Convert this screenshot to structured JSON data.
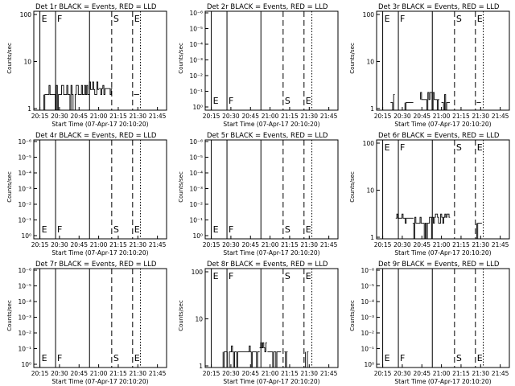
{
  "figure": {
    "background": "#ffffff",
    "foreground": "#000000"
  },
  "chart_data": [
    {
      "type": "line",
      "title": "Det 1r BLACK = Events, RED = LLD",
      "xlabel": "Start Time (07-Apr-17 20:10:20)",
      "ylabel": "Counts/sec",
      "x_ticks": [
        "20:15",
        "20:30",
        "20:45",
        "21:00",
        "21:15",
        "21:30",
        "21:45"
      ],
      "y_scale": "log",
      "y_ticks": [
        "1",
        "10",
        "100"
      ],
      "ylim": [
        1,
        100
      ],
      "markers": [
        {
          "label": "E",
          "time": "20:15",
          "style": "solid"
        },
        {
          "label": "F",
          "time": "20:27",
          "style": "solid"
        },
        {
          "label": "",
          "time": "20:53",
          "style": "solid"
        },
        {
          "label": "S",
          "time": "21:10",
          "style": "dashed"
        },
        {
          "label": "E",
          "time": "21:26",
          "style": "dashed"
        },
        {
          "label": "",
          "time": "21:32",
          "style": "dotted"
        }
      ],
      "series": [
        {
          "color": "#000000",
          "segments": [
            {
              "t_start": "20:18",
              "t_end": "20:53",
              "low": 1,
              "high": 3,
              "baseline": 2
            },
            {
              "t_start": "20:53",
              "t_end": "21:00",
              "low": 2,
              "high": 3.5,
              "baseline": 2.5
            },
            {
              "t_start": "21:00",
              "t_end": "21:10",
              "low": 2,
              "high": 3,
              "baseline": 2.6
            },
            {
              "t_start": "21:27",
              "t_end": "21:31",
              "low": 1,
              "high": 3,
              "baseline": 2
            }
          ]
        }
      ]
    },
    {
      "type": "line",
      "title": "Det 2r BLACK = Events, RED = LLD",
      "xlabel": "Start Time (07-Apr-17 20:10:20)",
      "ylabel": "Counts/sec",
      "x_ticks": [
        "20:15",
        "20:30",
        "20:45",
        "21:00",
        "21:15",
        "21:30",
        "21:45"
      ],
      "y_scale": "log",
      "y_ticks": [
        "10⁰",
        "10⁻¹",
        "10⁻²",
        "10⁻³",
        "10⁻⁴",
        "10⁻⁵",
        "10⁻⁶"
      ],
      "ylim": [
        1,
        1e-06
      ],
      "markers": [
        {
          "label": "E",
          "time": "20:15",
          "style": "solid"
        },
        {
          "label": "F",
          "time": "20:27",
          "style": "solid"
        },
        {
          "label": "",
          "time": "20:53",
          "style": "solid"
        },
        {
          "label": "S",
          "time": "21:10",
          "style": "dashed"
        },
        {
          "label": "E",
          "time": "21:26",
          "style": "dashed"
        },
        {
          "label": "",
          "time": "21:32",
          "style": "dotted"
        }
      ],
      "series": []
    },
    {
      "type": "line",
      "title": "Det 3r BLACK = Events, RED = LLD",
      "xlabel": "Start Time (07-Apr-17 20:10:20)",
      "ylabel": "Counts/sec",
      "x_ticks": [
        "20:15",
        "20:30",
        "20:45",
        "21:00",
        "21:15",
        "21:30",
        "21:45"
      ],
      "y_scale": "log",
      "y_ticks": [
        "1",
        "10",
        "100"
      ],
      "ylim": [
        1,
        100
      ],
      "markers": [
        {
          "label": "E",
          "time": "20:15",
          "style": "solid"
        },
        {
          "label": "F",
          "time": "20:27",
          "style": "solid"
        },
        {
          "label": "",
          "time": "20:53",
          "style": "solid"
        },
        {
          "label": "S",
          "time": "21:10",
          "style": "dashed"
        },
        {
          "label": "E",
          "time": "21:26",
          "style": "dashed"
        },
        {
          "label": "",
          "time": "21:32",
          "style": "dotted"
        }
      ],
      "series": [
        {
          "color": "#000000",
          "segments": [
            {
              "t_start": "20:21",
              "t_end": "20:24",
              "low": 1,
              "high": 2,
              "baseline": 1.4
            },
            {
              "t_start": "20:32",
              "t_end": "20:38",
              "low": 1,
              "high": 2,
              "baseline": 1.4
            },
            {
              "t_start": "20:44",
              "t_end": "20:58",
              "low": 1,
              "high": 2.2,
              "baseline": 1.6
            },
            {
              "t_start": "21:00",
              "t_end": "21:06",
              "low": 1,
              "high": 2,
              "baseline": 1.4
            },
            {
              "t_start": "21:27",
              "t_end": "21:30",
              "low": 1,
              "high": 2,
              "baseline": 1.4
            }
          ]
        }
      ]
    },
    {
      "type": "line",
      "title": "Det 4r BLACK = Events, RED = LLD",
      "xlabel": "Start Time (07-Apr-17 20:10:20)",
      "ylabel": "Counts/sec",
      "x_ticks": [
        "20:15",
        "20:30",
        "20:45",
        "21:00",
        "21:15",
        "21:30",
        "21:45"
      ],
      "y_scale": "log",
      "y_ticks": [
        "10⁰",
        "10⁻¹",
        "10⁻²",
        "10⁻³",
        "10⁻⁴",
        "10⁻⁵",
        "10⁻⁶"
      ],
      "ylim": [
        1,
        1e-06
      ],
      "markers": [
        {
          "label": "E",
          "time": "20:15",
          "style": "solid"
        },
        {
          "label": "F",
          "time": "20:27",
          "style": "solid"
        },
        {
          "label": "",
          "time": "20:53",
          "style": "solid"
        },
        {
          "label": "S",
          "time": "21:10",
          "style": "dashed"
        },
        {
          "label": "E",
          "time": "21:26",
          "style": "dashed"
        },
        {
          "label": "",
          "time": "21:32",
          "style": "dotted"
        }
      ],
      "series": []
    },
    {
      "type": "line",
      "title": "Det 5r BLACK = Events, RED = LLD",
      "xlabel": "Start Time (07-Apr-17 20:10:20)",
      "ylabel": "Counts/sec",
      "x_ticks": [
        "20:15",
        "20:30",
        "20:45",
        "21:00",
        "21:15",
        "21:30",
        "21:45"
      ],
      "y_scale": "log",
      "y_ticks": [
        "10⁰",
        "10⁻¹",
        "10⁻²",
        "10⁻³",
        "10⁻⁴",
        "10⁻⁵",
        "10⁻⁶"
      ],
      "ylim": [
        1,
        1e-06
      ],
      "markers": [
        {
          "label": "E",
          "time": "20:15",
          "style": "solid"
        },
        {
          "label": "F",
          "time": "20:27",
          "style": "solid"
        },
        {
          "label": "",
          "time": "20:53",
          "style": "solid"
        },
        {
          "label": "S",
          "time": "21:10",
          "style": "dashed"
        },
        {
          "label": "E",
          "time": "21:26",
          "style": "dashed"
        },
        {
          "label": "",
          "time": "21:32",
          "style": "dotted"
        }
      ],
      "series": []
    },
    {
      "type": "line",
      "title": "Det 6r BLACK = Events, RED = LLD",
      "xlabel": "Start Time (07-Apr-17 20:10:20)",
      "ylabel": "Counts/sec",
      "x_ticks": [
        "20:15",
        "20:30",
        "20:45",
        "21:00",
        "21:15",
        "21:30",
        "21:45"
      ],
      "y_scale": "log",
      "y_ticks": [
        "1",
        "10",
        "100"
      ],
      "ylim": [
        1,
        100
      ],
      "markers": [
        {
          "label": "E",
          "time": "20:15",
          "style": "solid"
        },
        {
          "label": "F",
          "time": "20:27",
          "style": "solid"
        },
        {
          "label": "",
          "time": "20:53",
          "style": "solid"
        },
        {
          "label": "S",
          "time": "21:10",
          "style": "dashed"
        },
        {
          "label": "E",
          "time": "21:26",
          "style": "dashed"
        },
        {
          "label": "",
          "time": "21:32",
          "style": "dotted"
        }
      ],
      "series": [
        {
          "color": "#000000",
          "segments": [
            {
              "t_start": "20:25",
              "t_end": "20:38",
              "low": 2,
              "high": 3,
              "baseline": 2.5
            },
            {
              "t_start": "20:38",
              "t_end": "20:53",
              "low": 1,
              "high": 2.6,
              "baseline": 2
            },
            {
              "t_start": "20:53",
              "t_end": "21:06",
              "low": 2,
              "high": 3,
              "baseline": 2.6
            },
            {
              "t_start": "21:27",
              "t_end": "21:31",
              "low": 1,
              "high": 3,
              "baseline": 2
            }
          ]
        }
      ]
    },
    {
      "type": "line",
      "title": "Det 7r BLACK = Events, RED = LLD",
      "xlabel": "Start Time (07-Apr-17 20:10:20)",
      "ylabel": "Counts/sec",
      "x_ticks": [
        "20:15",
        "20:30",
        "20:45",
        "21:00",
        "21:15",
        "21:30",
        "21:45"
      ],
      "y_scale": "log",
      "y_ticks": [
        "10⁰",
        "10⁻¹",
        "10⁻²",
        "10⁻³",
        "10⁻⁴",
        "10⁻⁵",
        "10⁻⁶"
      ],
      "ylim": [
        1,
        1e-06
      ],
      "markers": [
        {
          "label": "E",
          "time": "20:15",
          "style": "solid"
        },
        {
          "label": "F",
          "time": "20:27",
          "style": "solid"
        },
        {
          "label": "",
          "time": "20:53",
          "style": "solid"
        },
        {
          "label": "S",
          "time": "21:10",
          "style": "dashed"
        },
        {
          "label": "E",
          "time": "21:26",
          "style": "dashed"
        },
        {
          "label": "",
          "time": "21:32",
          "style": "dotted"
        }
      ],
      "series": []
    },
    {
      "type": "line",
      "title": "Det 8r BLACK = Events, RED = LLD",
      "xlabel": "Start Time (07-Apr-17 20:10:20)",
      "ylabel": "Counts/sec",
      "x_ticks": [
        "20:15",
        "20:30",
        "20:45",
        "21:00",
        "21:15",
        "21:30",
        "21:45"
      ],
      "y_scale": "log",
      "y_ticks": [
        "1",
        "10",
        "100"
      ],
      "ylim": [
        1,
        100
      ],
      "markers": [
        {
          "label": "E",
          "time": "20:15",
          "style": "solid"
        },
        {
          "label": "F",
          "time": "20:27",
          "style": "solid"
        },
        {
          "label": "",
          "time": "20:53",
          "style": "solid"
        },
        {
          "label": "S",
          "time": "21:10",
          "style": "dashed"
        },
        {
          "label": "E",
          "time": "21:26",
          "style": "dashed"
        },
        {
          "label": "",
          "time": "21:32",
          "style": "dotted"
        }
      ],
      "series": [
        {
          "color": "#000000",
          "segments": [
            {
              "t_start": "20:24",
              "t_end": "20:52",
              "low": 1,
              "high": 2.6,
              "baseline": 2
            },
            {
              "t_start": "20:52",
              "t_end": "20:57",
              "low": 2,
              "high": 3,
              "baseline": 2.4
            },
            {
              "t_start": "20:58",
              "t_end": "21:08",
              "low": 1,
              "high": 2,
              "baseline": 2
            },
            {
              "t_start": "21:11",
              "t_end": "21:13",
              "low": 1,
              "high": 2,
              "baseline": 2
            },
            {
              "t_start": "21:27",
              "t_end": "21:29",
              "low": 1,
              "high": 2,
              "baseline": 2
            }
          ]
        }
      ]
    },
    {
      "type": "line",
      "title": "Det 9r BLACK = Events, RED = LLD",
      "xlabel": "Start Time (07-Apr-17 20:10:20)",
      "ylabel": "Counts/sec",
      "x_ticks": [
        "20:15",
        "20:30",
        "20:45",
        "21:00",
        "21:15",
        "21:30",
        "21:45"
      ],
      "y_scale": "log",
      "y_ticks": [
        "10⁰",
        "10⁻¹",
        "10⁻²",
        "10⁻³",
        "10⁻⁴",
        "10⁻⁵",
        "10⁻⁶"
      ],
      "ylim": [
        1,
        1e-06
      ],
      "markers": [
        {
          "label": "E",
          "time": "20:15",
          "style": "solid"
        },
        {
          "label": "F",
          "time": "20:27",
          "style": "solid"
        },
        {
          "label": "",
          "time": "20:53",
          "style": "solid"
        },
        {
          "label": "S",
          "time": "21:10",
          "style": "dashed"
        },
        {
          "label": "E",
          "time": "21:26",
          "style": "dashed"
        },
        {
          "label": "",
          "time": "21:32",
          "style": "dotted"
        }
      ],
      "series": []
    }
  ]
}
